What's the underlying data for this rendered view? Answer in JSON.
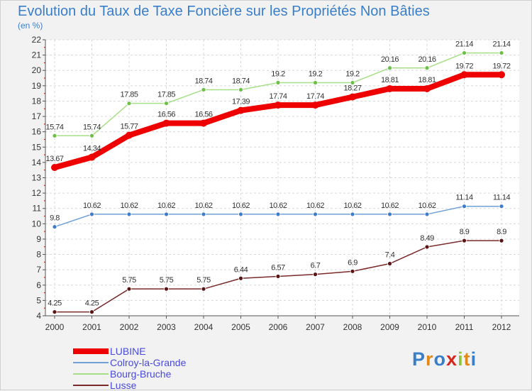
{
  "title": "Evolution du Taux de Taxe Foncière sur les Propriétés Non Bâties",
  "unit_label": "(en %)",
  "logo": {
    "letters": [
      "P",
      "r",
      "o",
      "x",
      "i",
      "t",
      "i"
    ],
    "colors": [
      "#3a7ec9",
      "#e08a1c",
      "#3a7ec9",
      "#d7261e",
      "#8cc63f",
      "#e08a1c",
      "#3a7ec9"
    ]
  },
  "chart_data": {
    "type": "line",
    "title": "Evolution du Taux de Taxe Foncière sur les Propriétés Non Bâties",
    "ylabel": "(en %)",
    "xlabel": "",
    "x": [
      "2000",
      "2001",
      "2002",
      "2003",
      "2004",
      "2005",
      "2006",
      "2007",
      "2008",
      "2009",
      "2010",
      "2011",
      "2012"
    ],
    "ylim": [
      4,
      22
    ],
    "yticks": [
      4,
      5,
      6,
      7,
      8,
      9,
      10,
      11,
      12,
      13,
      14,
      15,
      16,
      17,
      18,
      19,
      20,
      21,
      22
    ],
    "grid": true,
    "legend_position": "bottom-left",
    "series": [
      {
        "name": "LUBINE",
        "color": "#ee0000",
        "width": 8,
        "marker": 5,
        "values": [
          13.67,
          14.34,
          15.77,
          16.56,
          16.56,
          17.39,
          17.74,
          17.74,
          18.27,
          18.81,
          18.81,
          19.72,
          19.72
        ],
        "labels": [
          "13.67",
          "14.34",
          "15.77",
          "16.56",
          "16.56",
          "17.39",
          "17.74",
          "17.74",
          "18.27",
          "18.81",
          "18.81",
          "19.72",
          "19.72"
        ]
      },
      {
        "name": "Colroy-la-Grande",
        "color": "#6fa0d6",
        "width": 1.5,
        "marker": 3,
        "marker_color": "#3f7dc8",
        "values": [
          9.8,
          10.62,
          10.62,
          10.62,
          10.62,
          10.62,
          10.62,
          10.62,
          10.62,
          10.62,
          10.62,
          11.14,
          11.14
        ],
        "labels": [
          "9.8",
          "10.62",
          "10.62",
          "10.62",
          "10.62",
          "10.62",
          "10.62",
          "10.62",
          "10.62",
          "10.62",
          "10.62",
          "11.14",
          "11.14"
        ]
      },
      {
        "name": "Bourg-Bruche",
        "color": "#a6df87",
        "width": 1.5,
        "marker": 3,
        "marker_color": "#6cc048",
        "values": [
          15.74,
          15.74,
          17.85,
          17.85,
          18.74,
          18.74,
          19.2,
          19.2,
          19.2,
          20.16,
          20.16,
          21.14,
          21.14
        ],
        "labels": [
          "15.74",
          "15.74",
          "17.85",
          "17.85",
          "18.74",
          "18.74",
          "19.2",
          "19.2",
          "19.2",
          "20.16",
          "20.16",
          "21.14",
          "21.14"
        ]
      },
      {
        "name": "Lusse",
        "color": "#7a2a2a",
        "width": 1.5,
        "marker": 3,
        "marker_color": "#5a1515",
        "values": [
          4.25,
          4.25,
          5.75,
          5.75,
          5.75,
          6.44,
          6.57,
          6.7,
          6.9,
          7.4,
          8.49,
          8.9,
          8.9
        ],
        "labels": [
          "4.25",
          "4.25",
          "5.75",
          "5.75",
          "5.75",
          "6.44",
          "6.57",
          "6.7",
          "6.9",
          "7.4",
          "8.49",
          "8.9",
          "8.9"
        ]
      }
    ]
  }
}
